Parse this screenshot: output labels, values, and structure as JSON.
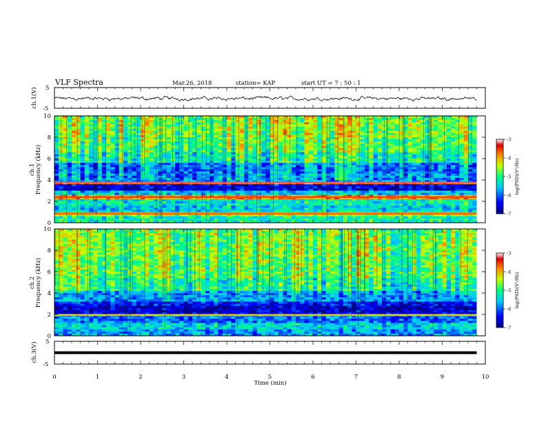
{
  "header": {
    "title": "VLF Spectra",
    "date": "Mar.26, 2018",
    "station": "station= KAP",
    "start": "start  UT =   7 : 50 : 1"
  },
  "chart_data": [
    {
      "type": "line",
      "panel": "ch1-waveform",
      "ylabel": "ch.1(V)",
      "ylim": [
        -5,
        5
      ],
      "yticks": [
        "5",
        "-5"
      ],
      "xlim": [
        0,
        10
      ],
      "data_span": [
        0,
        9.8
      ],
      "series": [
        {
          "values_summary": "noise waveform oscillating around ~ -0.3 V, amplitude ~ ±1.5 V"
        }
      ]
    },
    {
      "type": "heatmap",
      "panel": "ch1-spectrogram",
      "ylabel_line1": "ch.1",
      "ylabel_line2": "Frequency (kHz)",
      "ylim": [
        0,
        10
      ],
      "yticks": [
        "0",
        "2",
        "4",
        "6",
        "8",
        "10"
      ],
      "xlim": [
        0,
        10
      ],
      "data_span": [
        0,
        9.8
      ],
      "colorbar": {
        "label": "log(PSD)(V²/Hz)",
        "range": [
          -7,
          -3
        ],
        "ticks": [
          "-3",
          "-4",
          "-5",
          "-6",
          "-7"
        ]
      },
      "bands": [
        {
          "from": 0.0,
          "to": 0.6,
          "level": -5.2
        },
        {
          "from": 0.6,
          "to": 1.0,
          "level": -4.6
        },
        {
          "from": 1.0,
          "to": 1.6,
          "level": -5.5
        },
        {
          "from": 1.6,
          "to": 2.2,
          "level": -5.3
        },
        {
          "from": 2.2,
          "to": 2.6,
          "level": -4.0
        },
        {
          "from": 2.6,
          "to": 3.0,
          "level": -5.6
        },
        {
          "from": 3.0,
          "to": 3.6,
          "level": -6.6
        },
        {
          "from": 3.6,
          "to": 3.9,
          "level": -3.6
        },
        {
          "from": 3.9,
          "to": 4.6,
          "level": -5.8
        },
        {
          "from": 4.6,
          "to": 5.6,
          "level": -5.9
        },
        {
          "from": 5.6,
          "to": 6.6,
          "level": -5.2
        },
        {
          "from": 6.6,
          "to": 8.0,
          "level": -4.9
        },
        {
          "from": 8.0,
          "to": 10.0,
          "level": -4.7
        }
      ],
      "lines": [
        {
          "f": 3.75,
          "level": -3.2
        },
        {
          "f": 2.4,
          "level": -3.6
        },
        {
          "f": 0.85,
          "level": -3.7
        }
      ]
    },
    {
      "type": "heatmap",
      "panel": "ch2-spectrogram",
      "ylabel_line1": "ch.2",
      "ylabel_line2": "Frequency (kHz)",
      "ylim": [
        0,
        10
      ],
      "yticks": [
        "0",
        "2",
        "4",
        "6",
        "8",
        "10"
      ],
      "xlim": [
        0,
        10
      ],
      "data_span": [
        0,
        9.8
      ],
      "colorbar": {
        "label": "log(PSD)(V²/Hz)",
        "range": [
          -7,
          -3
        ],
        "ticks": [
          "-3",
          "-4",
          "-5",
          "-6",
          "-7"
        ]
      },
      "bands": [
        {
          "from": 0.0,
          "to": 0.6,
          "level": -5.8
        },
        {
          "from": 0.6,
          "to": 1.2,
          "level": -5.5
        },
        {
          "from": 1.2,
          "to": 2.0,
          "level": -6.0
        },
        {
          "from": 2.0,
          "to": 2.8,
          "level": -6.7
        },
        {
          "from": 2.8,
          "to": 3.2,
          "level": -6.4
        },
        {
          "from": 3.2,
          "to": 4.2,
          "level": -5.8
        },
        {
          "from": 4.2,
          "to": 5.5,
          "level": -5.2
        },
        {
          "from": 5.5,
          "to": 7.5,
          "level": -4.9
        },
        {
          "from": 7.5,
          "to": 10.0,
          "level": -4.8
        }
      ],
      "lines": [
        {
          "f": 1.95,
          "level": -4.2
        }
      ]
    },
    {
      "type": "line",
      "panel": "ch3-waveform",
      "ylabel": "ch.3(V)",
      "ylim": [
        -5,
        5
      ],
      "yticks": [
        "5",
        "-5"
      ],
      "xlim": [
        0,
        10
      ],
      "xlabel": "Time (min)",
      "xticks": [
        "0",
        "1",
        "2",
        "3",
        "4",
        "5",
        "6",
        "7",
        "8",
        "9",
        "10"
      ],
      "data_span": [
        0,
        9.8
      ],
      "series": [
        {
          "values_summary": "constant level ~ 0 V (thick flat line)"
        }
      ]
    }
  ]
}
